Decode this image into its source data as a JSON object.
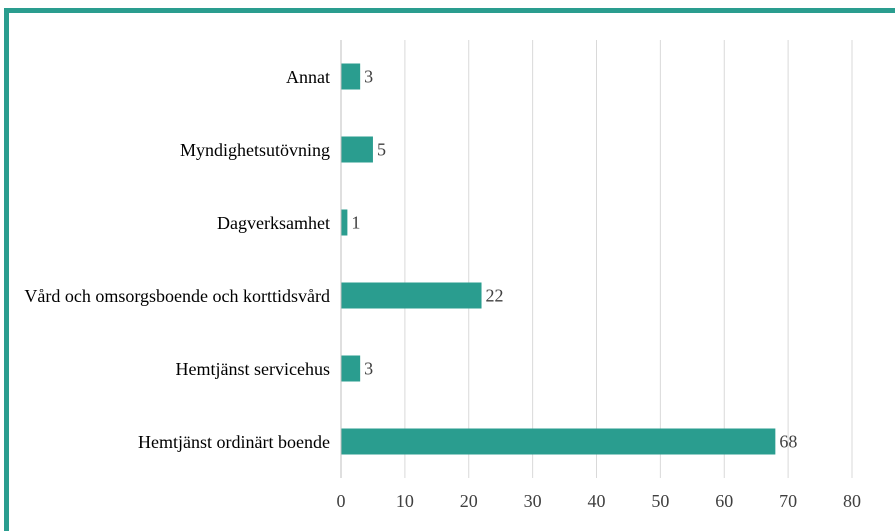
{
  "chart_data": {
    "type": "bar",
    "orientation": "horizontal",
    "categories": [
      "Annat",
      "Myndighetsutövning",
      "Dagverksamhet",
      "Vård och omsorgsboende och korttidsvård",
      "Hemtjänst servicehus",
      "Hemtjänst ordinärt boende"
    ],
    "values": [
      3,
      5,
      1,
      22,
      3,
      68
    ],
    "color": "#2a9d8f",
    "xlim": [
      0,
      80
    ],
    "xticks": [
      0,
      10,
      20,
      30,
      40,
      50,
      60,
      70,
      80
    ],
    "grid": true
  }
}
